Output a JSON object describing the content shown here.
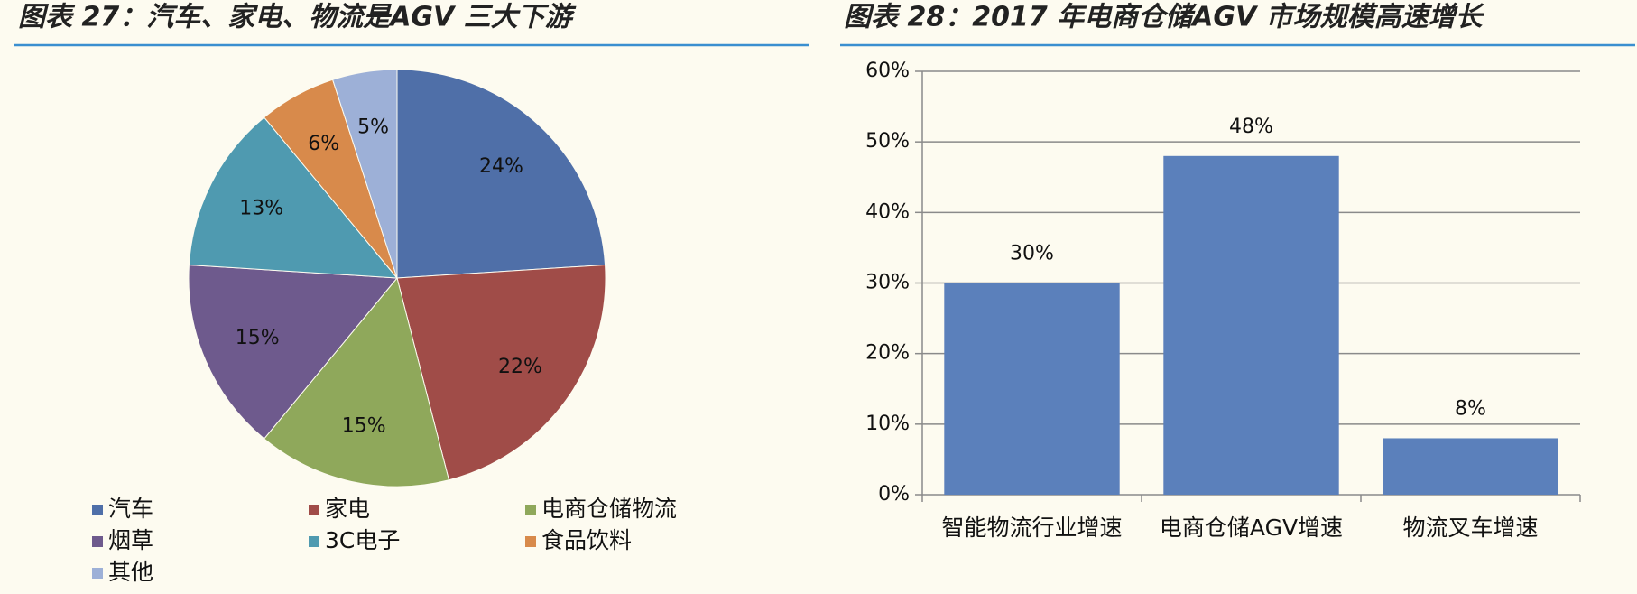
{
  "chart_data": [
    {
      "type": "pie",
      "title": "图表 27：汽车、家电、物流是AGV 三大下游",
      "categories": [
        "汽车",
        "家电",
        "电商仓储物流",
        "烟草",
        "3C电子",
        "食品饮料",
        "其他"
      ],
      "values": [
        24,
        22,
        15,
        15,
        13,
        6,
        5
      ],
      "value_labels": [
        "24%",
        "22%",
        "15%",
        "15%",
        "13%",
        "6%",
        "5%"
      ],
      "colors": [
        "#4f6fa8",
        "#a04c48",
        "#8fa85b",
        "#6e5a8d",
        "#4f9ab0",
        "#d88a4b",
        "#9db0d7"
      ],
      "legend": "bottom"
    },
    {
      "type": "bar",
      "title": "图表 28：2017 年电商仓储AGV 市场规模高速增长",
      "categories": [
        "智能物流行业增速",
        "电商仓储AGV增速",
        "物流叉车增速"
      ],
      "values": [
        30,
        48,
        8
      ],
      "value_labels": [
        "30%",
        "48%",
        "8%"
      ],
      "color": "#5b80bb",
      "ylim": [
        0,
        60
      ],
      "yticks": [
        {
          "value": 0,
          "label": "0%"
        },
        {
          "value": 10,
          "label": "10%"
        },
        {
          "value": 20,
          "label": "20%"
        },
        {
          "value": 30,
          "label": "30%"
        },
        {
          "value": 40,
          "label": "40%"
        },
        {
          "value": 50,
          "label": "50%"
        },
        {
          "value": 60,
          "label": "60%"
        }
      ],
      "grid": true
    }
  ]
}
